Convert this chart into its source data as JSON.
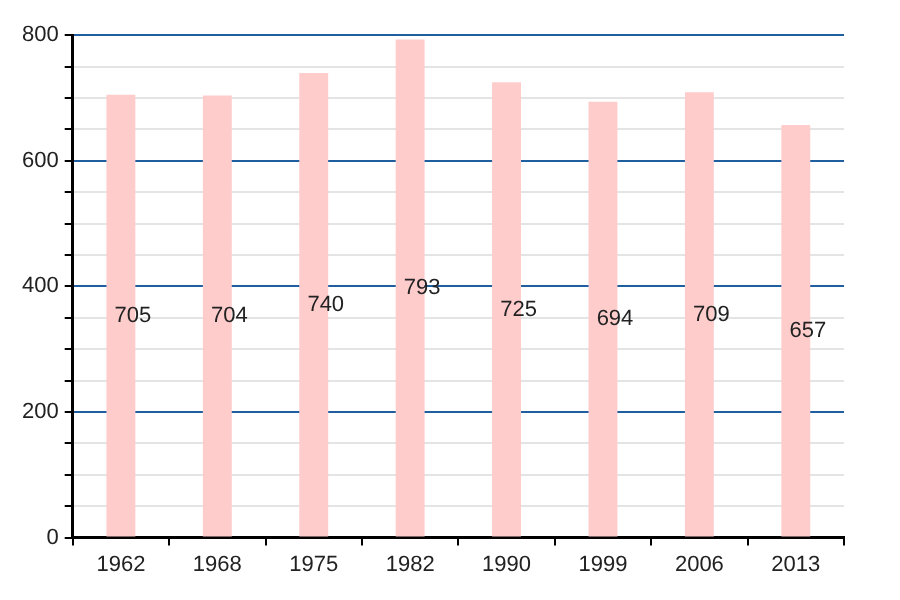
{
  "chart_data": {
    "type": "bar",
    "categories": [
      "1962",
      "1968",
      "1975",
      "1982",
      "1990",
      "1999",
      "2006",
      "2013"
    ],
    "values": [
      705,
      704,
      740,
      793,
      725,
      694,
      709,
      657
    ],
    "color": "#ffcccc",
    "data_labels": true,
    "ylim": [
      0,
      800
    ],
    "yticks": [
      0,
      {
        "value": 50,
        "label": null
      },
      {
        "value": 100,
        "label": null
      },
      {
        "value": 150,
        "label": null
      },
      200,
      {
        "value": 250,
        "label": null
      },
      {
        "value": 300,
        "label": null
      },
      {
        "value": 350,
        "label": null
      },
      400,
      {
        "value": 450,
        "label": null
      },
      {
        "value": 500,
        "label": null
      },
      {
        "value": 550,
        "label": null
      },
      600,
      {
        "value": 650,
        "label": null
      },
      {
        "value": 700,
        "label": null
      },
      {
        "value": 750,
        "label": null
      },
      800
    ],
    "grid": true,
    "legend": false
  }
}
